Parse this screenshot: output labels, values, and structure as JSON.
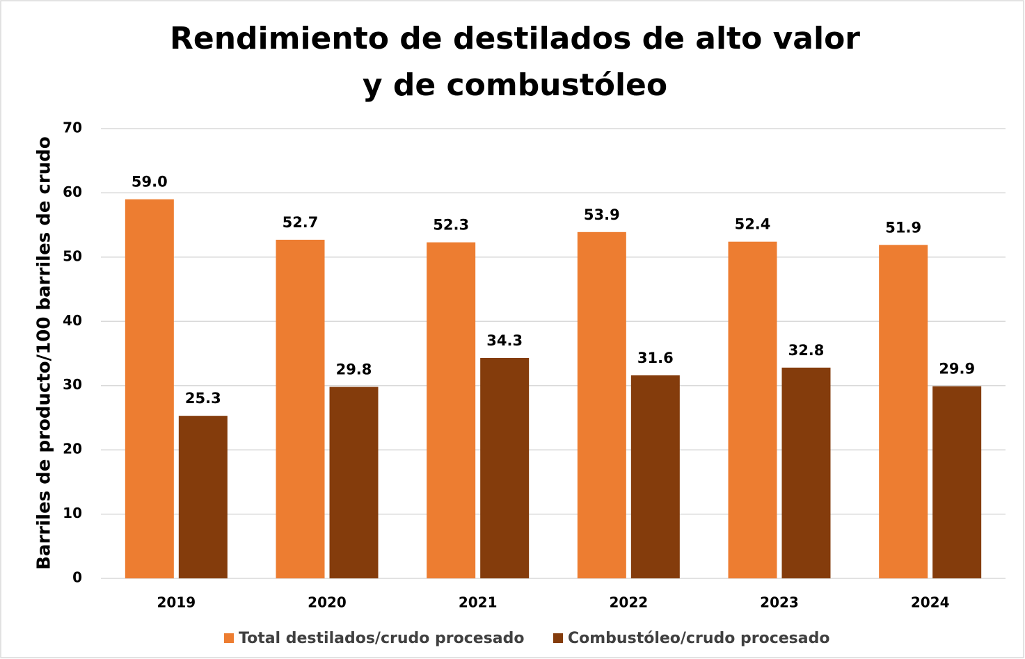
{
  "chart_data": {
    "type": "bar",
    "title": [
      "Rendimiento de destilados de alto valor",
      "y de combustóleo"
    ],
    "y_label": "Barriles de producto/100 barriles de crudo",
    "categories": [
      "2019",
      "2020",
      "2021",
      "2022",
      "2023",
      "2024"
    ],
    "series": [
      {
        "name": "Total destilados/crudo procesado",
        "color": "#ED7D31",
        "values": [
          59.0,
          52.7,
          52.3,
          53.9,
          52.4,
          51.9
        ],
        "value_labels": [
          "59.0",
          "52.7",
          "52.3",
          "53.9",
          "52.4",
          "51.9"
        ]
      },
      {
        "name": "Combustóleo/crudo procesado",
        "color": "#843C0C",
        "values": [
          25.3,
          29.8,
          34.3,
          31.6,
          32.8,
          29.9
        ],
        "value_labels": [
          "25.3",
          "29.8",
          "34.3",
          "31.6",
          "32.8",
          "29.9"
        ]
      }
    ],
    "ylim": [
      0,
      70
    ],
    "yticks": [
      0,
      10,
      20,
      30,
      40,
      50,
      60,
      70
    ],
    "grid": true,
    "legend": "bottom"
  }
}
